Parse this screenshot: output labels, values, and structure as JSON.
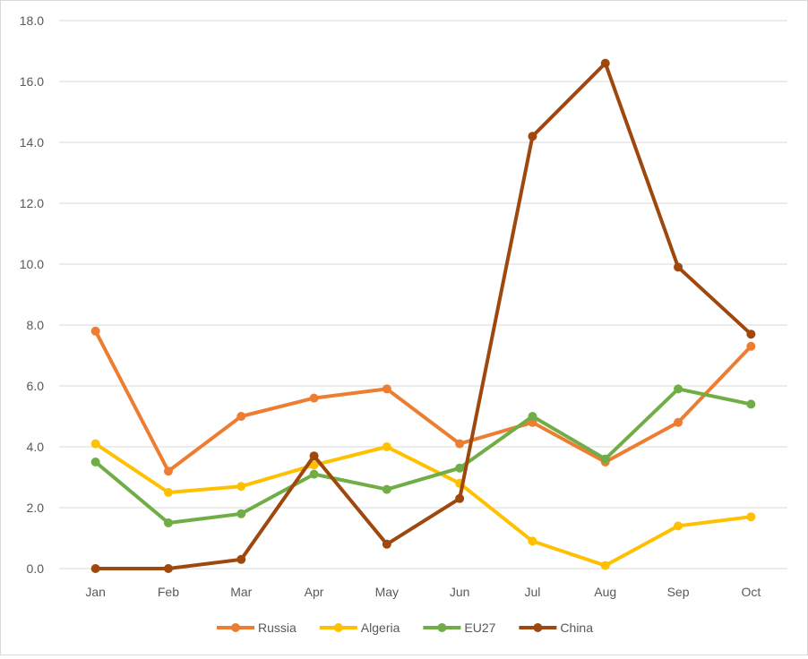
{
  "chart_data": {
    "type": "line",
    "title": "",
    "xlabel": "",
    "ylabel": "",
    "categories": [
      "Jan",
      "Feb",
      "Mar",
      "Apr",
      "May",
      "Jun",
      "Jul",
      "Aug",
      "Sep",
      "Oct"
    ],
    "ylim": [
      0,
      18
    ],
    "yticks": [
      0,
      2,
      4,
      6,
      8,
      10,
      12,
      14,
      16,
      18
    ],
    "ytick_labels": [
      "0.0",
      "2.0",
      "4.0",
      "6.0",
      "8.0",
      "10.0",
      "12.0",
      "14.0",
      "16.0",
      "18.0"
    ],
    "grid": true,
    "legend_position": "bottom",
    "series": [
      {
        "name": "Russia",
        "color": "#ED7D31",
        "values": [
          7.8,
          3.2,
          5.0,
          5.6,
          5.9,
          4.1,
          4.8,
          3.5,
          4.8,
          7.3
        ]
      },
      {
        "name": "Algeria",
        "color": "#FFC000",
        "values": [
          4.1,
          2.5,
          2.7,
          3.4,
          4.0,
          2.8,
          0.9,
          0.1,
          1.4,
          1.7
        ]
      },
      {
        "name": "EU27",
        "color": "#70AD47",
        "values": [
          3.5,
          1.5,
          1.8,
          3.1,
          2.6,
          3.3,
          5.0,
          3.6,
          5.9,
          5.4
        ]
      },
      {
        "name": "China",
        "color": "#9E480E",
        "values": [
          0.0,
          0.0,
          0.3,
          3.7,
          0.8,
          2.3,
          14.2,
          16.6,
          9.9,
          7.7
        ]
      }
    ]
  }
}
